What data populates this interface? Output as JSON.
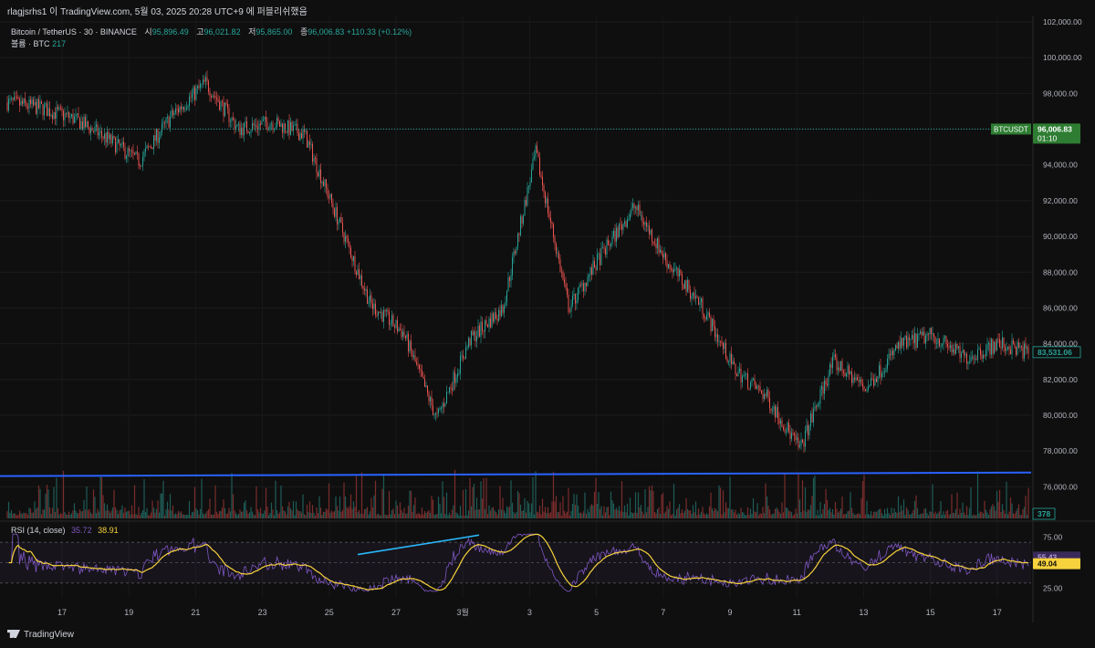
{
  "header": {
    "caption": "rlagjsrhs1 이 TradingView.com, 5월 03, 2025 20:28 UTC+9 에 퍼블리쉬했음"
  },
  "legend": {
    "symbol": "Bitcoin / TetherUS · 30 · BINANCE",
    "open_label": "시",
    "open": "95,896.49",
    "high_label": "고",
    "high": "96,021.82",
    "low_label": "저",
    "low": "95,865.00",
    "close_label": "종",
    "close": "96,006.83",
    "change": "+110.33 (+0.12%)",
    "volume_label": "볼륨 · BTC",
    "volume": "217"
  },
  "rsi_legend": {
    "label": "RSI (14, close)",
    "rsi": "35.72",
    "ma": "38.91"
  },
  "badges": {
    "symbol": "BTCUSDT",
    "price": "96,006.83",
    "countdown": "01:10",
    "second_price": "83,531.06",
    "volume": "378",
    "rsi_value": "55.43",
    "rsi_ma": "49.04"
  },
  "footer": {
    "brand": "TradingView"
  },
  "colors": {
    "up": "#26a69a",
    "down": "#ef5350",
    "trendline": "#2962ff",
    "rsi_line": "#7e57c2",
    "rsi_ma": "#f7d23c",
    "annotation": "#29b6f6",
    "price_badge": "#2e7d32"
  },
  "chart_data": {
    "type": "candlestick",
    "y_ticks": [
      "102,000.00",
      "100,000.00",
      "98,000.00",
      "96,000.00",
      "94,000.00",
      "92,000.00",
      "90,000.00",
      "88,000.00",
      "86,000.00",
      "84,000.00",
      "82,000.00",
      "80,000.00",
      "78,000.00",
      "76,000.00"
    ],
    "ylim": [
      75000,
      102000
    ],
    "x_ticks": [
      "17",
      "19",
      "21",
      "23",
      "25",
      "27",
      "3월",
      "3",
      "5",
      "7",
      "9",
      "11",
      "13",
      "15",
      "17"
    ],
    "price_path_approx": {
      "x": [
        "Feb 15",
        "Feb 16",
        "Feb 17",
        "Feb 18",
        "Feb 19",
        "Feb 20",
        "Feb 21",
        "Feb 22",
        "Feb 23",
        "Feb 24",
        "Feb 25",
        "Feb 26",
        "Feb 27",
        "Feb 28",
        "Mar 1",
        "Mar 2",
        "Mar 3",
        "Mar 4",
        "Mar 5",
        "Mar 6",
        "Mar 7",
        "Mar 8",
        "Mar 9",
        "Mar 10",
        "Mar 11",
        "Mar 12",
        "Mar 13",
        "Mar 14",
        "Mar 15",
        "Mar 16",
        "Mar 17",
        "Mar 18"
      ],
      "y": [
        97500,
        97200,
        96600,
        95500,
        94200,
        96800,
        98600,
        96000,
        96400,
        95700,
        91000,
        86200,
        84600,
        79800,
        84200,
        86000,
        94700,
        86000,
        89000,
        91700,
        88500,
        86200,
        82600,
        81000,
        78100,
        83000,
        81500,
        83900,
        84500,
        83200,
        84000,
        83500
      ]
    },
    "trendline": {
      "from": [
        "Feb 15",
        76600
      ],
      "to": [
        "Mar 18",
        76800
      ]
    },
    "last_price": 96006.83,
    "volume_last": 378,
    "rsi": {
      "label": "RSI (14, close)",
      "y_ticks": [
        "75.00",
        "50.00",
        "25.00"
      ],
      "band": [
        30,
        70
      ],
      "ylim": [
        20,
        80
      ],
      "last_rsi": 55.43,
      "last_ma": 49.04
    }
  }
}
